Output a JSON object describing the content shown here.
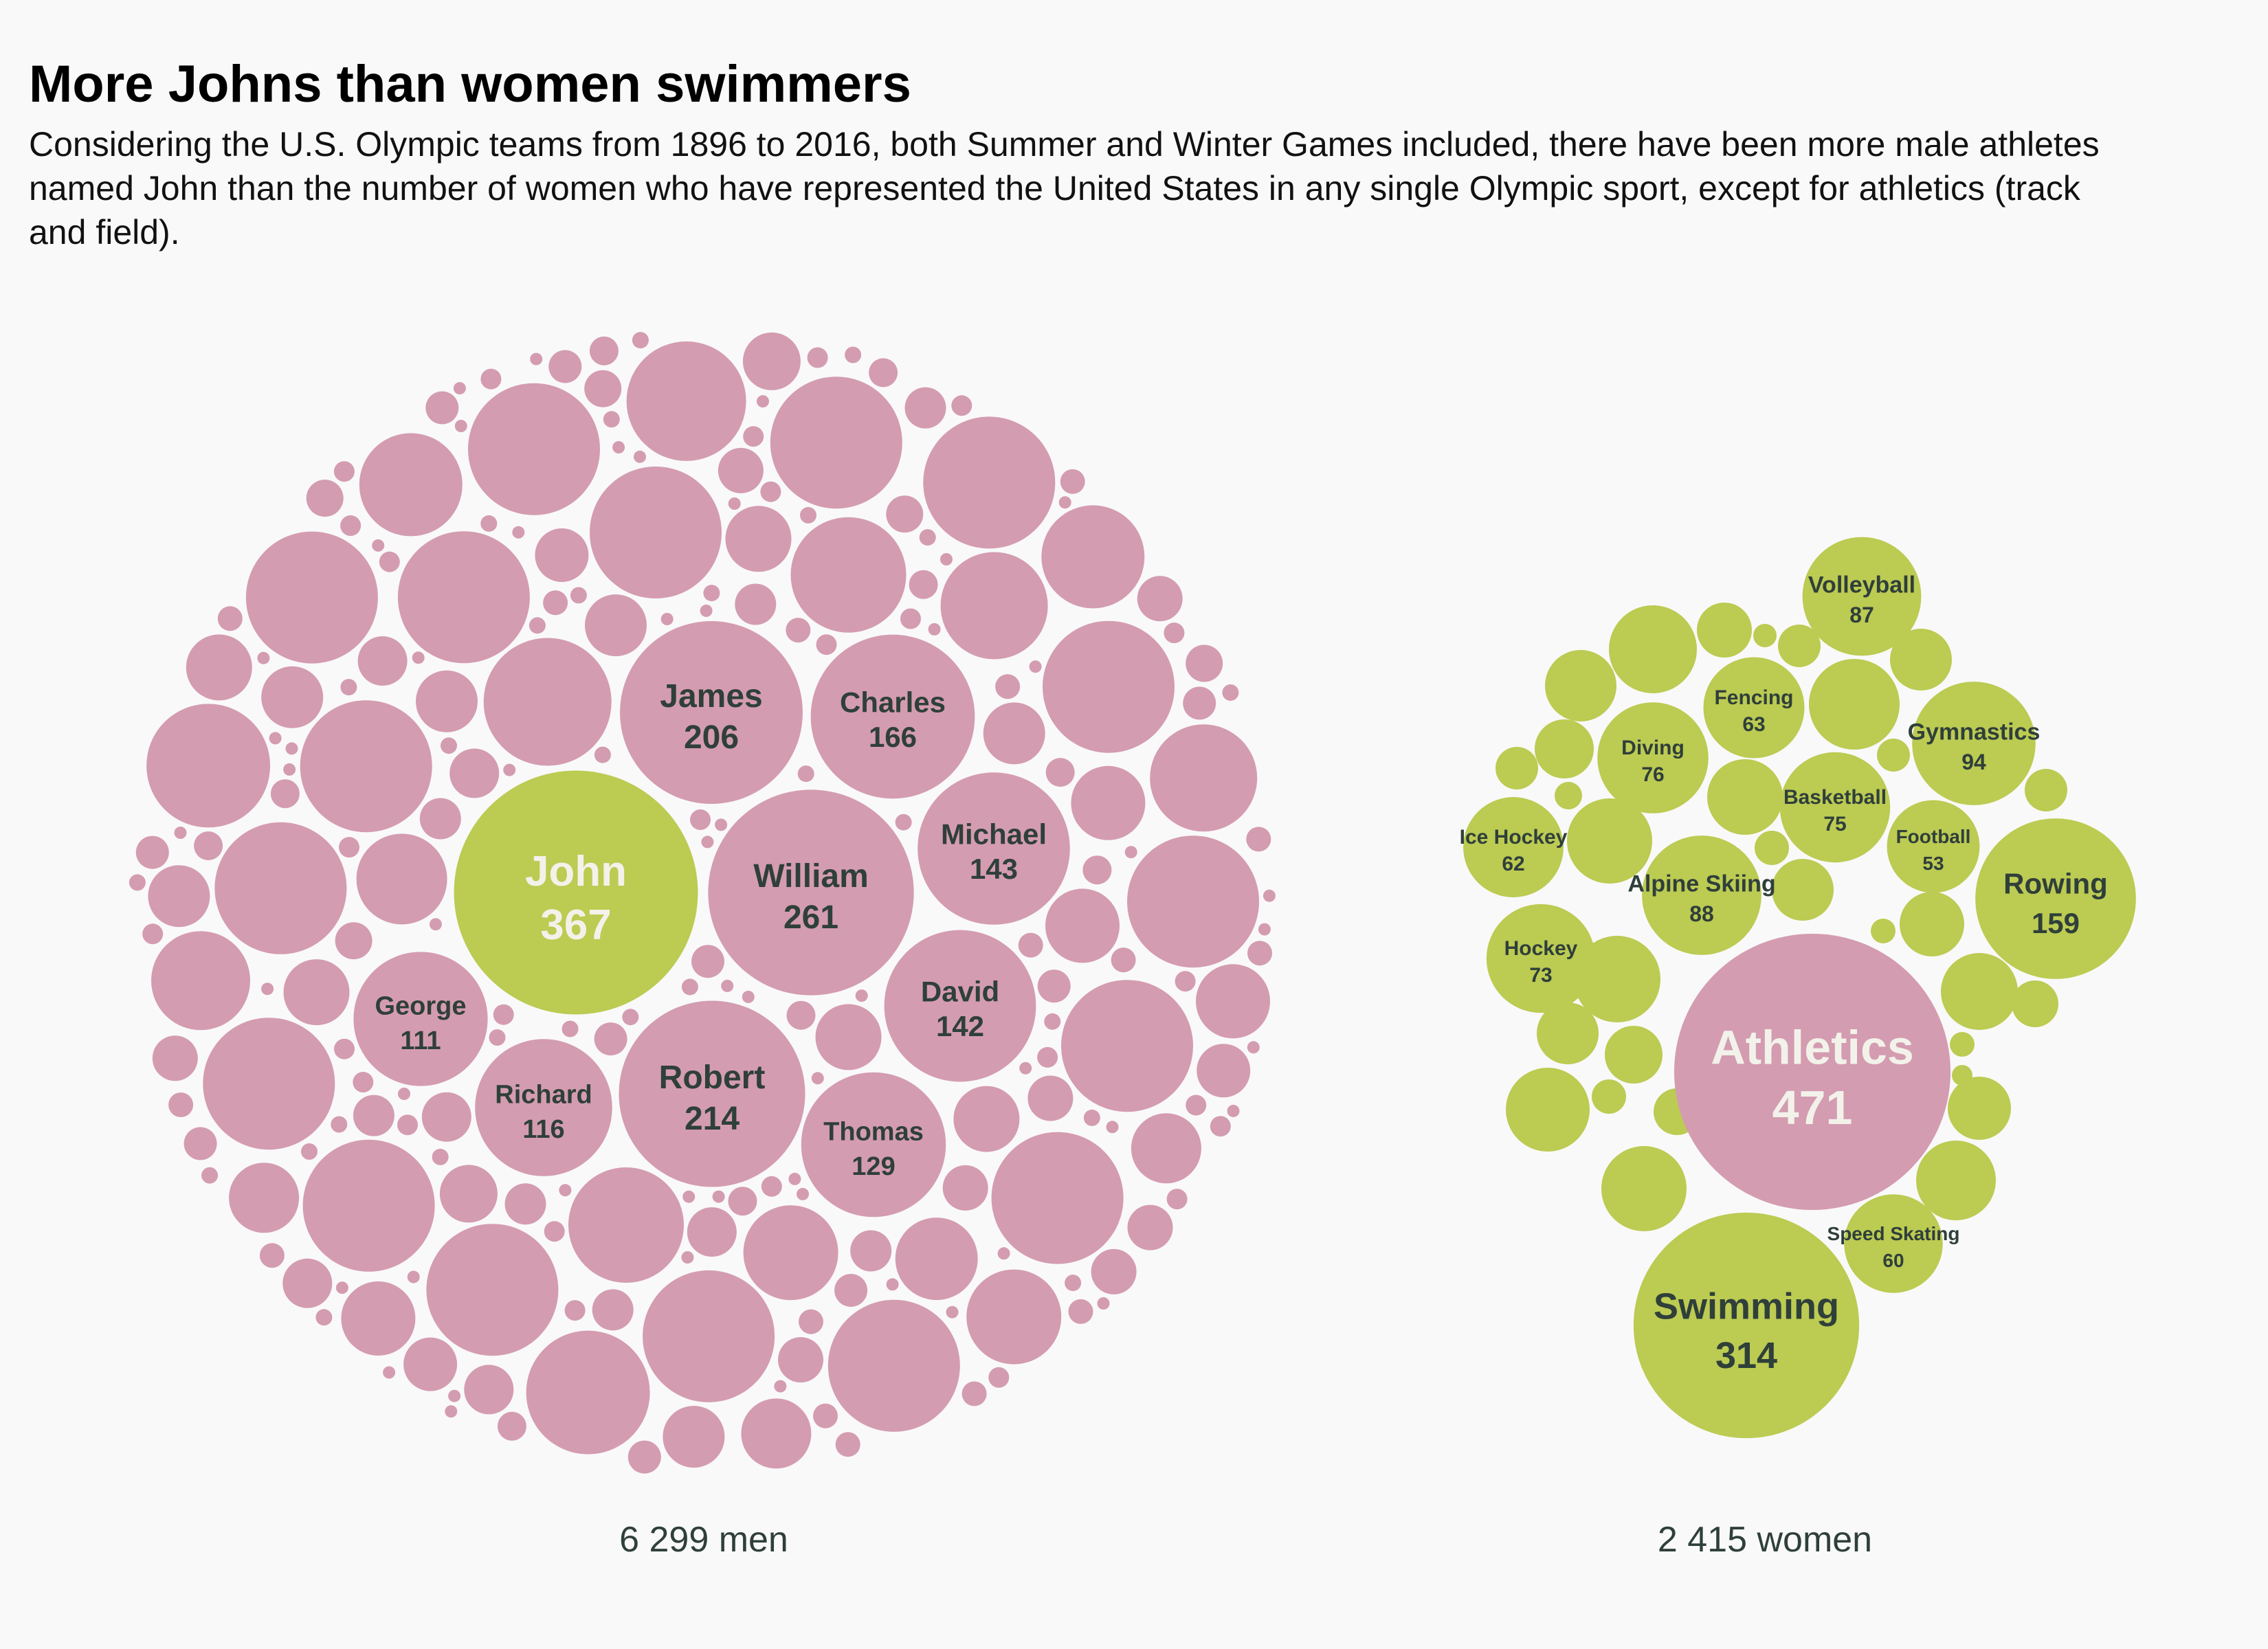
{
  "title": "More Johns than women swimmers",
  "subtitle": "Considering the U.S. Olympic teams from 1896 to 2016, both Summer and Winter Games included, there have been more male athletes named John than the number of women who have represented the United States in any single Olympic sport, except for athletics (track and field).",
  "colors": {
    "men": "#d49cb0",
    "women": "#bccb52",
    "label_dark": "#2f3f3a",
    "label_light": "#f2f2ea",
    "background": "#f9f9f9"
  },
  "chart_data": [
    {
      "type": "packed-bubble",
      "group": "men",
      "total_label": "6 299 men",
      "total": 6299,
      "labeled": [
        {
          "name": "John",
          "value": 367,
          "highlight": true
        },
        {
          "name": "William",
          "value": 261
        },
        {
          "name": "Robert",
          "value": 214
        },
        {
          "name": "James",
          "value": 206
        },
        {
          "name": "Charles",
          "value": 166
        },
        {
          "name": "Michael",
          "value": 143
        },
        {
          "name": "David",
          "value": 142
        },
        {
          "name": "Thomas",
          "value": 129
        },
        {
          "name": "Richard",
          "value": 116
        },
        {
          "name": "George",
          "value": 111
        }
      ]
    },
    {
      "type": "packed-bubble",
      "group": "women",
      "total_label": "2 415 women",
      "total": 2415,
      "labeled": [
        {
          "name": "Athletics",
          "value": 471,
          "highlight": true
        },
        {
          "name": "Swimming",
          "value": 314
        },
        {
          "name": "Rowing",
          "value": 159
        },
        {
          "name": "Gymnastics",
          "value": 94
        },
        {
          "name": "Alpine Skiing",
          "value": 88
        },
        {
          "name": "Volleyball",
          "value": 87
        },
        {
          "name": "Diving",
          "value": 76
        },
        {
          "name": "Basketball",
          "value": 75
        },
        {
          "name": "Hockey",
          "value": 73
        },
        {
          "name": "Fencing",
          "value": 63
        },
        {
          "name": "Ice Hockey",
          "value": 62
        },
        {
          "name": "Speed Skating",
          "value": 60
        },
        {
          "name": "Football",
          "value": 53
        }
      ]
    }
  ]
}
